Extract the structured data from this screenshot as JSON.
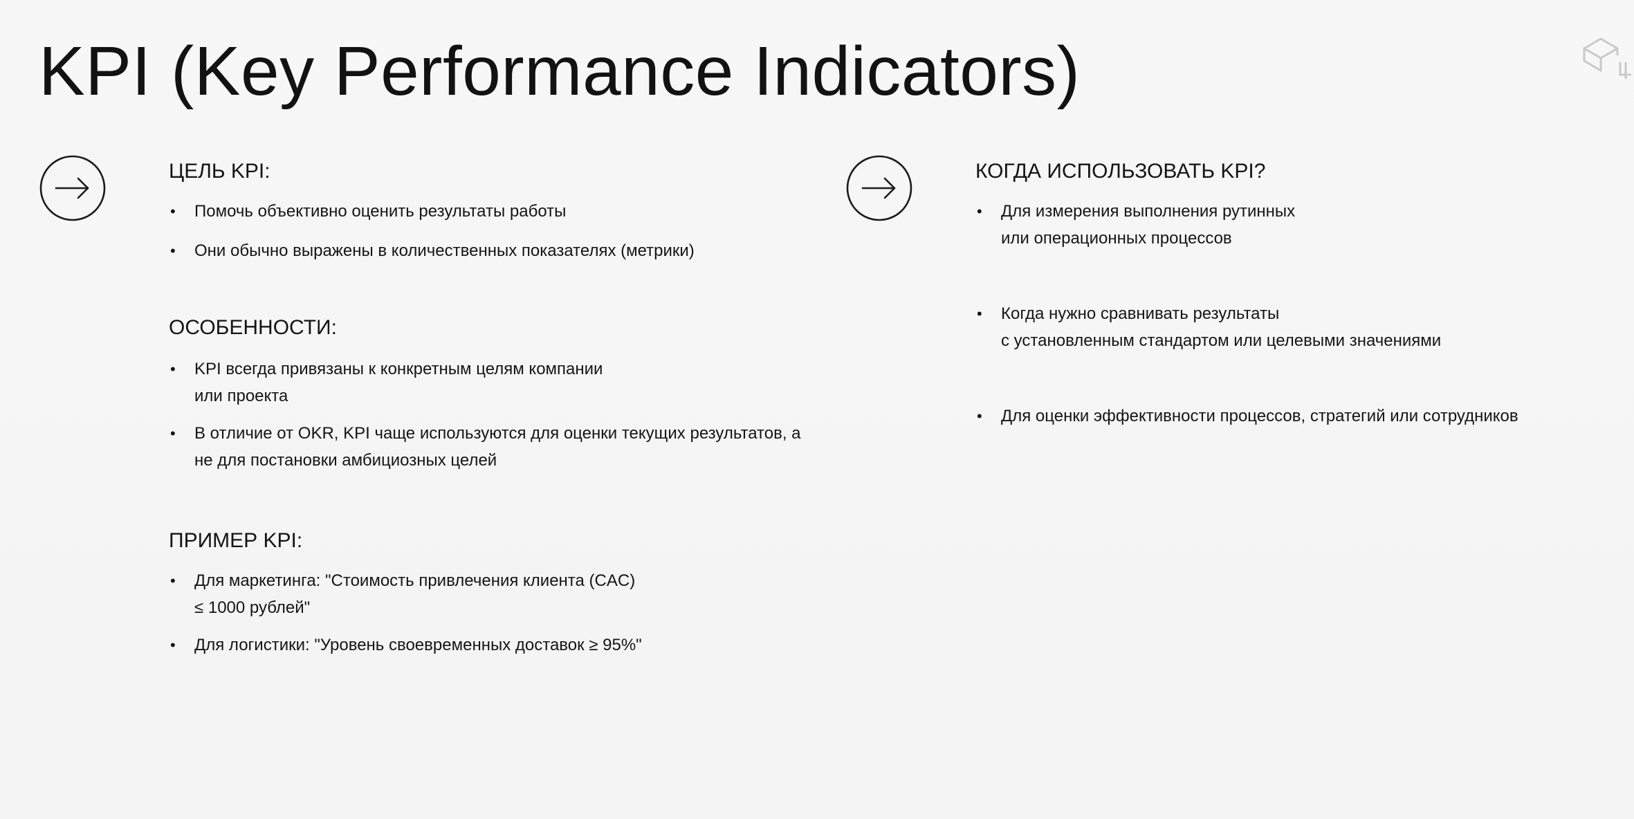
{
  "title": "KPI (Key Performance Indicators)",
  "icons": {
    "left_arrow": "arrow-right-in-circle",
    "right_arrow": "arrow-right-in-circle",
    "logo": "cube-logo"
  },
  "left_column": {
    "goal": {
      "heading": "ЦЕЛЬ KPI:",
      "items": [
        {
          "lines": [
            "Помочь объективно оценить результаты работы"
          ]
        },
        {
          "lines": [
            "Они обычно выражены в количественных показателях (метрики)"
          ]
        }
      ]
    },
    "features": {
      "heading": "ОСОБЕННОСТИ:",
      "items": [
        {
          "lines": [
            "KPI всегда привязаны к конкретным целям компании",
            "или проекта"
          ]
        },
        {
          "lines": [
            "В отличие от OKR, KPI чаще используются для оценки текущих результатов, а",
            "не для постановки амбициозных целей"
          ]
        }
      ]
    },
    "example": {
      "heading": "ПРИМЕР KPI:",
      "items": [
        {
          "lines": [
            "Для маркетинга: \"Стоимость привлечения клиента (CAC)",
            "≤ 1000 рублей\""
          ]
        },
        {
          "lines": [
            "Для логистики: \"Уровень своевременных доставок ≥ 95%\""
          ]
        }
      ]
    }
  },
  "right_column": {
    "when": {
      "heading": "КОГДА ИСПОЛЬЗОВАТЬ KPI?",
      "items": [
        {
          "lines": [
            "Для измерения выполнения рутинных",
            "или операционных процессов"
          ]
        },
        {
          "lines": [
            "Когда нужно сравнивать результаты",
            "с установленным стандартом или целевыми значениями"
          ]
        },
        {
          "lines": [
            "Для оценки эффективности процессов, стратегий или сотрудников"
          ]
        }
      ]
    }
  },
  "bullet_char": "•"
}
